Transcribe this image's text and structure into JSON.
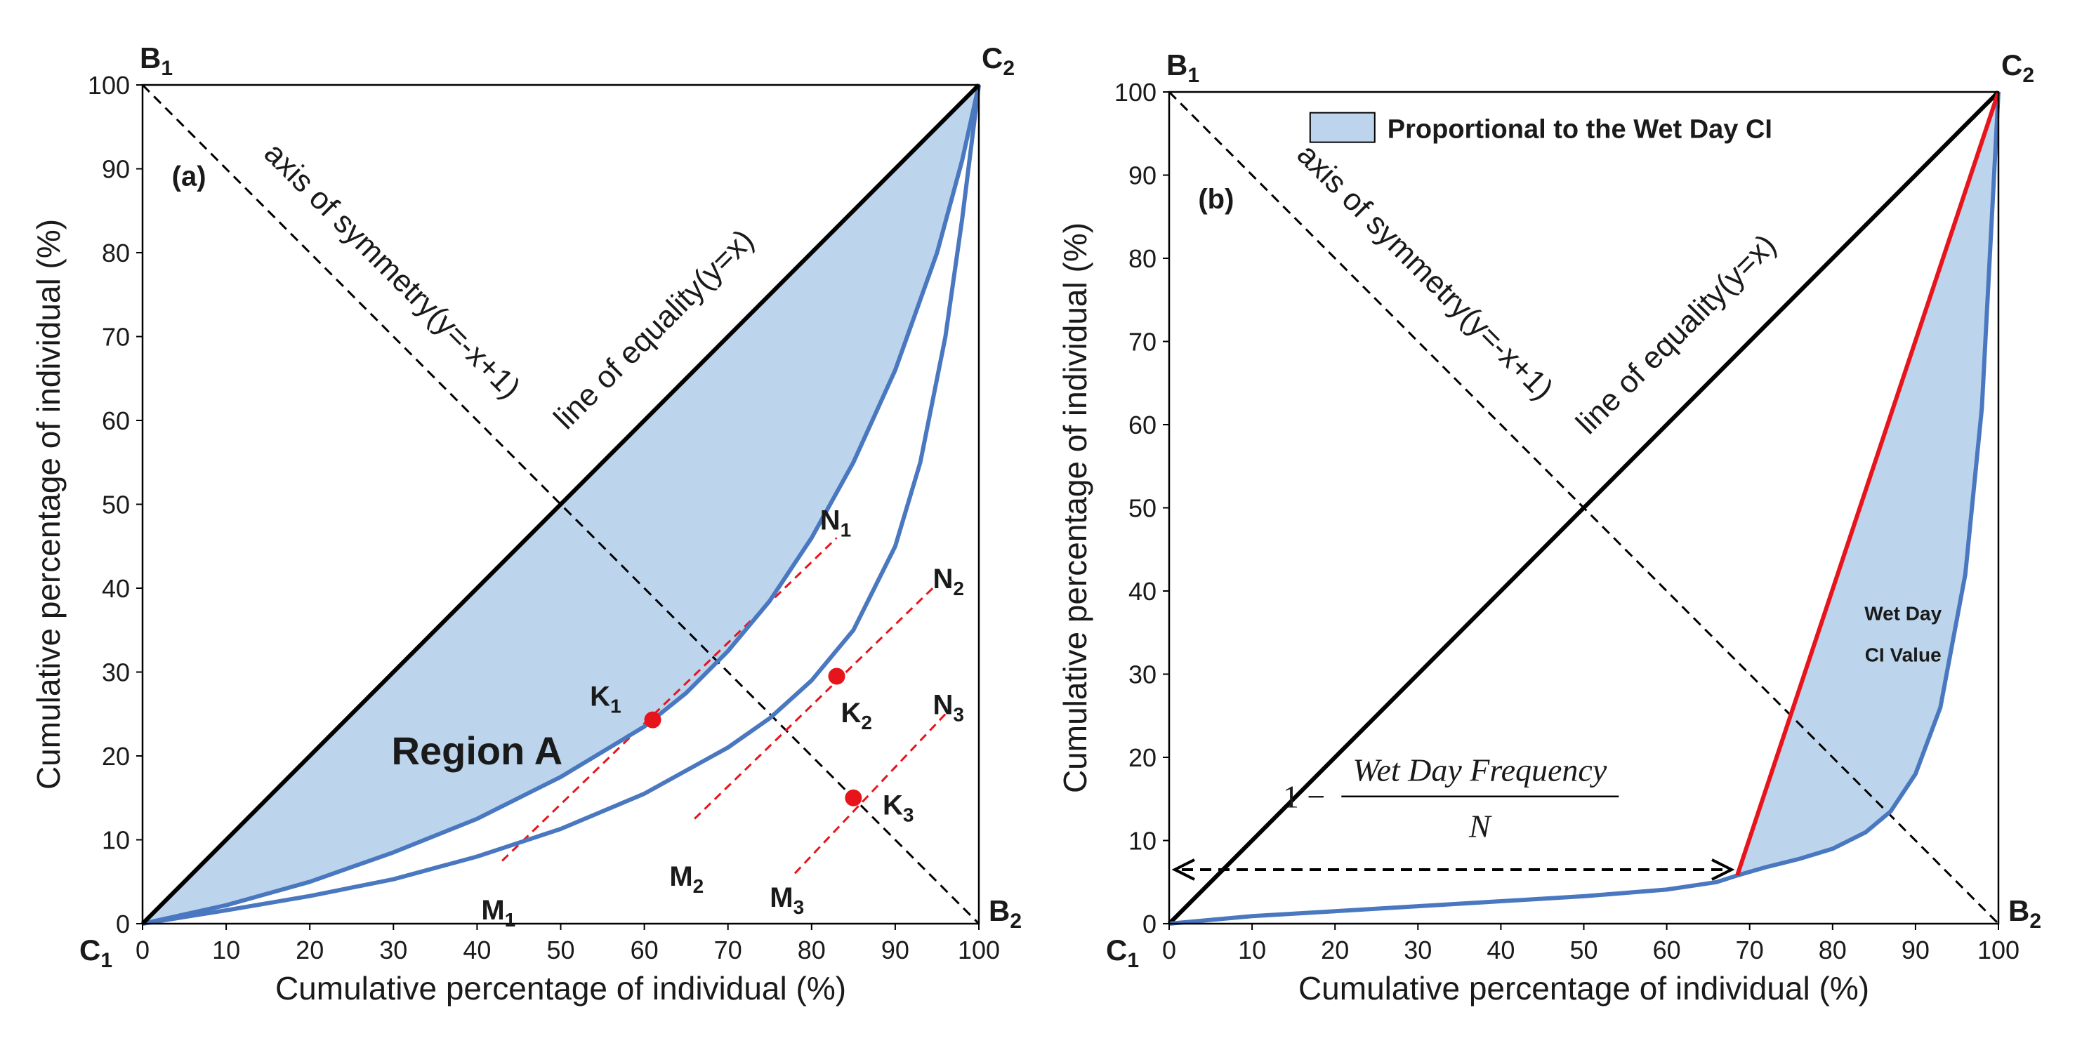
{
  "colors": {
    "fill": "#bcd5ec",
    "curve": "#4a78c0",
    "red": "#e8141c",
    "black": "#000000"
  },
  "chart_data": [
    {
      "type": "line",
      "panel": "(a)",
      "xlabel": "Cumulative percentage of individual (%)",
      "ylabel": "Cumulative percentage of individual (%)",
      "xlim": [
        0,
        100
      ],
      "ylim": [
        0,
        100
      ],
      "xticks": [
        "0",
        "10",
        "20",
        "30",
        "40",
        "50",
        "60",
        "70",
        "80",
        "90",
        "100"
      ],
      "yticks": [
        "0",
        "10",
        "20",
        "30",
        "40",
        "50",
        "60",
        "70",
        "80",
        "90",
        "100"
      ],
      "corners": {
        "B1": {
          "base": "B",
          "sub": "1"
        },
        "C2": {
          "base": "C",
          "sub": "2"
        },
        "C1": {
          "base": "C",
          "sub": "1"
        },
        "B2": {
          "base": "B",
          "sub": "2"
        }
      },
      "equality_label": "line of equality(y=x)",
      "symmetry_label": "axis of symmetry(y=-x+1)",
      "region_label": "Region A",
      "series": [
        {
          "name": "line of equality",
          "x": [
            0,
            100
          ],
          "y": [
            0,
            100
          ]
        },
        {
          "name": "axis of symmetry",
          "x": [
            0,
            100
          ],
          "y": [
            100,
            0
          ]
        },
        {
          "name": "upper Lorenz curve",
          "x": [
            0,
            10,
            20,
            30,
            40,
            50,
            60,
            65,
            70,
            75,
            80,
            85,
            90,
            95,
            98,
            100
          ],
          "y": [
            0,
            2.2,
            5,
            8.5,
            12.5,
            17.5,
            23.5,
            27.5,
            32.5,
            38.5,
            46,
            55,
            66,
            80,
            91,
            100
          ]
        },
        {
          "name": "lower Lorenz curve",
          "x": [
            0,
            10,
            20,
            30,
            40,
            50,
            60,
            70,
            75,
            80,
            85,
            90,
            93,
            96,
            98,
            100
          ],
          "y": [
            0,
            1.6,
            3.3,
            5.3,
            8,
            11.3,
            15.5,
            21,
            24.5,
            29,
            35,
            45,
            55,
            70,
            84,
            100
          ]
        },
        {
          "name": "M1N1",
          "x": [
            43,
            83
          ],
          "y": [
            7.5,
            46
          ]
        },
        {
          "name": "M2N2",
          "x": [
            66,
            95
          ],
          "y": [
            12.5,
            40.5
          ]
        },
        {
          "name": "M3N3",
          "x": [
            78,
            96
          ],
          "y": [
            6,
            25
          ]
        }
      ],
      "points": [
        {
          "name": "K1",
          "base": "K",
          "sub": "1",
          "x": 61,
          "y": 24.3
        },
        {
          "name": "K2",
          "base": "K",
          "sub": "2",
          "x": 83,
          "y": 29.5
        },
        {
          "name": "K3",
          "base": "K",
          "sub": "3",
          "x": 85,
          "y": 15
        }
      ],
      "line_labels": [
        {
          "base": "M",
          "sub": "1"
        },
        {
          "base": "N",
          "sub": "1"
        },
        {
          "base": "M",
          "sub": "2"
        },
        {
          "base": "N",
          "sub": "2"
        },
        {
          "base": "M",
          "sub": "3"
        },
        {
          "base": "N",
          "sub": "3"
        }
      ]
    },
    {
      "type": "line",
      "panel": "(b)",
      "xlabel": "Cumulative percentage of individual (%)",
      "ylabel": "Cumulative percentage of individual (%)",
      "xlim": [
        0,
        100
      ],
      "ylim": [
        0,
        100
      ],
      "xticks": [
        "0",
        "10",
        "20",
        "30",
        "40",
        "50",
        "60",
        "70",
        "80",
        "90",
        "100"
      ],
      "yticks": [
        "0",
        "10",
        "20",
        "30",
        "40",
        "50",
        "60",
        "70",
        "80",
        "90",
        "100"
      ],
      "corners": {
        "B1": {
          "base": "B",
          "sub": "1"
        },
        "C2": {
          "base": "C",
          "sub": "2"
        },
        "C1": {
          "base": "C",
          "sub": "1"
        },
        "B2": {
          "base": "B",
          "sub": "2"
        }
      },
      "equality_label": "line of equality(y=x)",
      "symmetry_label": "axis of symmetry(y=-x+1)",
      "legend": "Proportional to the Wet Day CI",
      "ci_label_line1": "Wet Day",
      "ci_label_line2": "CI Value",
      "formula": {
        "one": "1 −",
        "numerator": "Wet Day Frequency",
        "denominator": "N"
      },
      "series": [
        {
          "name": "line of equality",
          "x": [
            0,
            100
          ],
          "y": [
            0,
            100
          ]
        },
        {
          "name": "axis of symmetry",
          "x": [
            0,
            100
          ],
          "y": [
            100,
            0
          ]
        },
        {
          "name": "Lorenz curve",
          "x": [
            0,
            10,
            20,
            30,
            40,
            50,
            60,
            66,
            68.5,
            72,
            76,
            80,
            84,
            87,
            90,
            93,
            96,
            98,
            100
          ],
          "y": [
            0,
            0.9,
            1.5,
            2.1,
            2.7,
            3.3,
            4.1,
            5,
            5.8,
            6.8,
            7.8,
            9,
            11,
            13.5,
            18,
            26,
            42,
            62,
            100
          ]
        },
        {
          "name": "Wet Day CI line",
          "x": [
            68.5,
            100
          ],
          "y": [
            5.8,
            100
          ]
        },
        {
          "name": "frequency arrow",
          "x": [
            0,
            68.5
          ],
          "y": [
            6.5,
            6.5
          ]
        }
      ]
    }
  ]
}
